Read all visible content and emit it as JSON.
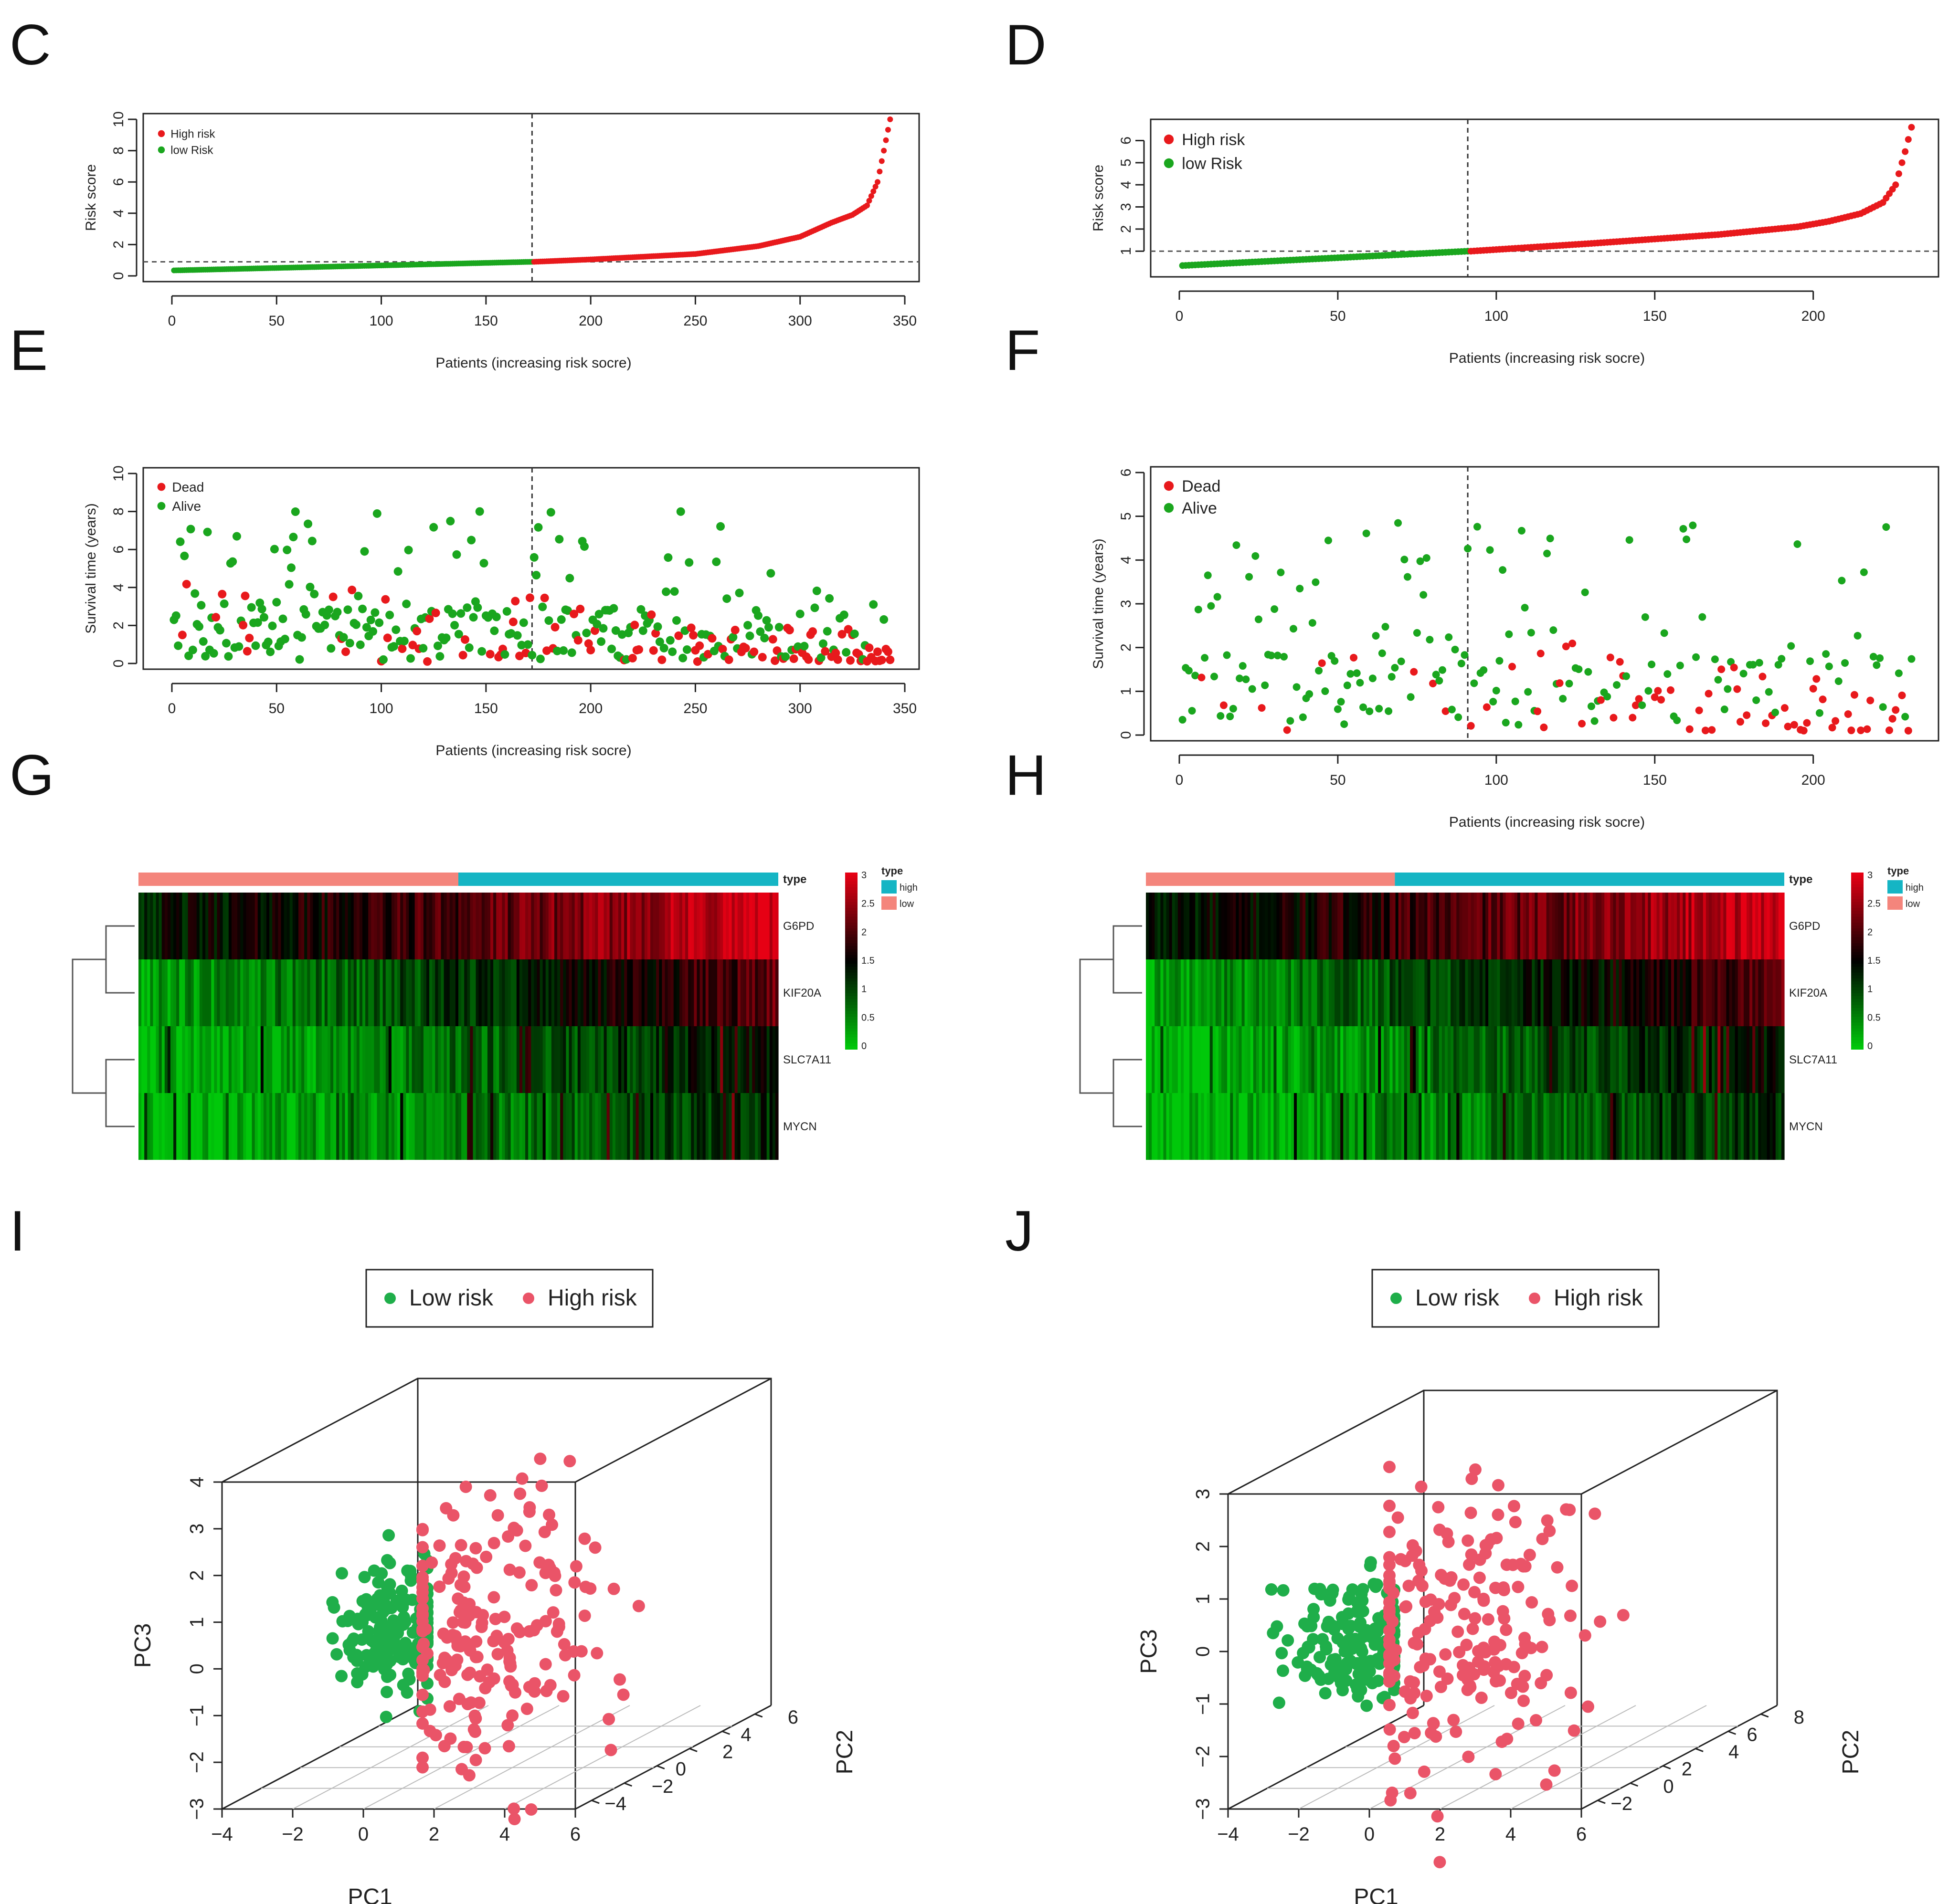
{
  "colors": {
    "red": "#e8191c",
    "green": "#1aa61e",
    "pink": "#ea5468",
    "pcagreen": "#1fae4a",
    "teal": "#15b5c4",
    "salmon": "#f4857c",
    "axis": "#222222"
  },
  "chart_data": [
    {
      "panel": "C",
      "type": "scatter",
      "ylabel": "Risk score",
      "xlabel": "Patients (increasing risk socre)",
      "x_ticks": [
        "0",
        "50",
        "100",
        "150",
        "200",
        "250",
        "300",
        "350"
      ],
      "y_ticks": [
        "0",
        "2",
        "4",
        "6",
        "8",
        "10"
      ],
      "xlim": [
        0,
        350
      ],
      "ylim": [
        0,
        10
      ],
      "legend": [
        "High risk",
        "low Risk"
      ],
      "n_patients": 343,
      "cutoff_index": 172,
      "cutoff_value": 0.9,
      "series": [
        {
          "name": "low Risk",
          "x_range": [
            1,
            172
          ],
          "y_range": [
            0.35,
            0.9
          ]
        },
        {
          "name": "High risk",
          "x_range": [
            173,
            343
          ],
          "y_range": [
            0.9,
            10
          ],
          "curve_points": [
            [
              173,
              0.9
            ],
            [
              200,
              1.05
            ],
            [
              250,
              1.4
            ],
            [
              280,
              1.9
            ],
            [
              300,
              2.5
            ],
            [
              315,
              3.4
            ],
            [
              325,
              3.9
            ],
            [
              332,
              4.5
            ],
            [
              337,
              6.0
            ],
            [
              340,
              8.0
            ],
            [
              343,
              10.0
            ]
          ]
        }
      ]
    },
    {
      "panel": "D",
      "type": "scatter",
      "ylabel": "Risk score",
      "xlabel": "Patients (increasing risk socre)",
      "x_ticks": [
        "0",
        "50",
        "100",
        "150",
        "200"
      ],
      "y_ticks": [
        "1",
        "2",
        "3",
        "4",
        "5",
        "6"
      ],
      "xlim": [
        0,
        235
      ],
      "ylim": [
        0.1,
        6.7
      ],
      "legend": [
        "High risk",
        "low Risk"
      ],
      "n_patients": 231,
      "cutoff_index": 91,
      "cutoff_value": 1.0,
      "series": [
        {
          "name": "low Risk",
          "x_range": [
            1,
            91
          ],
          "y_range": [
            0.35,
            1.0
          ]
        },
        {
          "name": "High risk",
          "x_range": [
            92,
            231
          ],
          "y_range": [
            1.0,
            6.6
          ],
          "curve_points": [
            [
              92,
              1.0
            ],
            [
              130,
              1.35
            ],
            [
              170,
              1.75
            ],
            [
              195,
              2.1
            ],
            [
              205,
              2.35
            ],
            [
              215,
              2.7
            ],
            [
              222,
              3.2
            ],
            [
              226,
              4.0
            ],
            [
              229,
              5.5
            ],
            [
              231,
              6.6
            ]
          ]
        }
      ]
    },
    {
      "panel": "E",
      "type": "scatter",
      "ylabel": "Survival time (years)",
      "xlabel": "Patients (increasing risk socre)",
      "x_ticks": [
        "0",
        "50",
        "100",
        "150",
        "200",
        "250",
        "300",
        "350"
      ],
      "y_ticks": [
        "0",
        "2",
        "4",
        "6",
        "8",
        "10"
      ],
      "xlim": [
        0,
        350
      ],
      "ylim": [
        0,
        10
      ],
      "legend": [
        "Dead",
        "Alive"
      ],
      "n_patients": 343,
      "cutoff_index": 172,
      "series": [
        {
          "name": "Dead"
        },
        {
          "name": "Alive"
        }
      ]
    },
    {
      "panel": "F",
      "type": "scatter",
      "ylabel": "Survival time (years)",
      "xlabel": "Patients (increasing risk socre)",
      "x_ticks": [
        "0",
        "50",
        "100",
        "150",
        "200"
      ],
      "y_ticks": [
        "0",
        "1",
        "2",
        "3",
        "4",
        "5",
        "6"
      ],
      "xlim": [
        0,
        235
      ],
      "ylim": [
        0,
        6
      ],
      "legend": [
        "Dead",
        "Alive"
      ],
      "n_patients": 231,
      "cutoff_index": 91,
      "series": [
        {
          "name": "Dead"
        },
        {
          "name": "Alive"
        }
      ]
    },
    {
      "panel": "G",
      "type": "heatmap",
      "genes": [
        "G6PD",
        "KIF20A",
        "SLC7A11",
        "MYCN"
      ],
      "annotation_label": "type",
      "legend_title": "type",
      "legend_entries": [
        "high",
        "low"
      ],
      "scale_ticks": [
        "3",
        "2.5",
        "2",
        "1.5",
        "1",
        "0.5",
        "0"
      ],
      "group_split_fraction": 0.5
    },
    {
      "panel": "H",
      "type": "heatmap",
      "genes": [
        "G6PD",
        "KIF20A",
        "SLC7A11",
        "MYCN"
      ],
      "annotation_label": "type",
      "legend_title": "type",
      "legend_entries": [
        "high",
        "low"
      ],
      "scale_ticks": [
        "3",
        "2.5",
        "2",
        "1.5",
        "1",
        "0.5",
        "0"
      ],
      "group_split_fraction": 0.39
    },
    {
      "panel": "I",
      "type": "scatter",
      "subtype": "3d-pca",
      "legend": [
        "Low risk",
        "High risk"
      ],
      "axis_labels": [
        "PC1",
        "PC2",
        "PC3"
      ],
      "pc1_ticks": [
        "-4",
        "-2",
        "0",
        "2",
        "4",
        "6"
      ],
      "pc2_ticks": [
        "-4",
        "-2",
        "0",
        "2",
        "4",
        "6"
      ],
      "pc3_ticks": [
        "-3",
        "-2",
        "-1",
        "0",
        "1",
        "2",
        "3",
        "4"
      ]
    },
    {
      "panel": "J",
      "type": "scatter",
      "subtype": "3d-pca",
      "legend": [
        "Low risk",
        "High risk"
      ],
      "axis_labels": [
        "PC1",
        "PC2",
        "PC3"
      ],
      "pc1_ticks": [
        "-4",
        "-2",
        "0",
        "2",
        "4",
        "6"
      ],
      "pc2_ticks": [
        "-2",
        "0",
        "2",
        "4",
        "6",
        "8"
      ],
      "pc3_ticks": [
        "-3",
        "-2",
        "-1",
        "0",
        "1",
        "2",
        "3"
      ]
    }
  ],
  "panel_labels": [
    "C",
    "D",
    "E",
    "F",
    "G",
    "H",
    "I",
    "J"
  ]
}
